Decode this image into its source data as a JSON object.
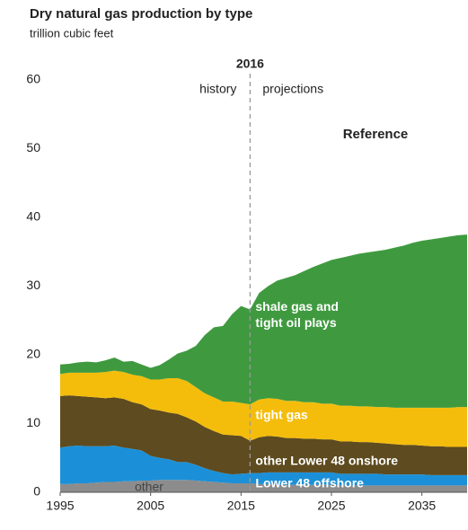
{
  "chart_data": {
    "type": "stacked_area",
    "title": "Dry natural gas production by type",
    "subtitle": "trillion cubic feet",
    "divider": 2016,
    "divider_left": "history",
    "divider_right": "projections",
    "scenario": "Reference",
    "x": [
      1995,
      1996,
      1997,
      1998,
      1999,
      2000,
      2001,
      2002,
      2003,
      2004,
      2005,
      2006,
      2007,
      2008,
      2009,
      2010,
      2011,
      2012,
      2013,
      2014,
      2015,
      2016,
      2017,
      2018,
      2019,
      2020,
      2021,
      2022,
      2023,
      2024,
      2025,
      2026,
      2027,
      2028,
      2029,
      2030,
      2031,
      2032,
      2033,
      2034,
      2035,
      2036,
      2037,
      2038,
      2039,
      2040
    ],
    "xlim": [
      1995,
      2040
    ],
    "xticks": [
      1995,
      2005,
      2015,
      2025,
      2035
    ],
    "ylim": [
      0,
      60
    ],
    "yticks": [
      0,
      10,
      20,
      30,
      40,
      50,
      60
    ],
    "series": [
      {
        "name": "other",
        "color": "#8c8c8c",
        "values": [
          1.2,
          1.2,
          1.3,
          1.3,
          1.4,
          1.5,
          1.5,
          1.6,
          1.6,
          1.7,
          1.7,
          1.8,
          1.8,
          1.8,
          1.8,
          1.7,
          1.6,
          1.5,
          1.4,
          1.3,
          1.3,
          1.3,
          1.2,
          1.2,
          1.1,
          1.1,
          1.1,
          1.1,
          1.1,
          1.1,
          1.1,
          1.0,
          1.0,
          1.0,
          1.0,
          1.0,
          1.0,
          1.0,
          1.0,
          1.0,
          1.0,
          1.0,
          1.0,
          1.0,
          1.0,
          1.0
        ]
      },
      {
        "name": "Lower 48 offshore",
        "color": "#1b90d8",
        "values": [
          5.3,
          5.5,
          5.5,
          5.4,
          5.3,
          5.2,
          5.3,
          4.9,
          4.7,
          4.4,
          3.6,
          3.2,
          3.0,
          2.6,
          2.6,
          2.3,
          1.9,
          1.6,
          1.4,
          1.3,
          1.4,
          1.5,
          1.6,
          1.7,
          1.8,
          1.8,
          1.8,
          1.8,
          1.8,
          1.8,
          1.8,
          1.7,
          1.7,
          1.7,
          1.7,
          1.7,
          1.6,
          1.6,
          1.6,
          1.6,
          1.6,
          1.5,
          1.5,
          1.5,
          1.5,
          1.5
        ]
      },
      {
        "name": "other Lower 48 onshore",
        "color": "#5e4b1f",
        "values": [
          7.5,
          7.4,
          7.2,
          7.2,
          7.1,
          7.0,
          7.0,
          7.1,
          6.8,
          6.7,
          6.8,
          6.9,
          6.8,
          7.0,
          6.5,
          6.3,
          6.0,
          5.8,
          5.6,
          5.7,
          5.5,
          4.7,
          5.2,
          5.3,
          5.2,
          5.0,
          5.0,
          4.9,
          4.9,
          4.8,
          4.8,
          4.7,
          4.7,
          4.6,
          4.6,
          4.5,
          4.5,
          4.4,
          4.3,
          4.3,
          4.2,
          4.2,
          4.2,
          4.1,
          4.1,
          4.1
        ]
      },
      {
        "name": "tight gas",
        "color": "#f4bd0c",
        "values": [
          3.2,
          3.3,
          3.4,
          3.5,
          3.6,
          3.8,
          3.9,
          3.9,
          4.0,
          4.1,
          4.3,
          4.5,
          5.0,
          5.2,
          5.3,
          5.0,
          4.9,
          4.9,
          4.8,
          4.9,
          4.8,
          5.3,
          5.5,
          5.5,
          5.5,
          5.4,
          5.4,
          5.3,
          5.3,
          5.2,
          5.2,
          5.2,
          5.2,
          5.2,
          5.2,
          5.2,
          5.3,
          5.3,
          5.4,
          5.4,
          5.5,
          5.6,
          5.6,
          5.7,
          5.8,
          5.8
        ]
      },
      {
        "name": "shale gas and tight oil plays",
        "color": "#3f9a3f",
        "values": [
          1.4,
          1.3,
          1.5,
          1.6,
          1.5,
          1.7,
          1.9,
          1.5,
          2.0,
          1.7,
          1.7,
          2.1,
          2.7,
          3.6,
          4.4,
          6.0,
          8.5,
          10.2,
          11.0,
          12.7,
          14.1,
          13.8,
          15.5,
          16.3,
          17.2,
          17.9,
          18.3,
          19.1,
          19.7,
          20.4,
          20.9,
          21.5,
          21.8,
          22.2,
          22.4,
          22.7,
          22.9,
          23.3,
          23.6,
          24.0,
          24.3,
          24.5,
          24.7,
          24.9,
          25.0,
          25.1
        ]
      }
    ]
  }
}
